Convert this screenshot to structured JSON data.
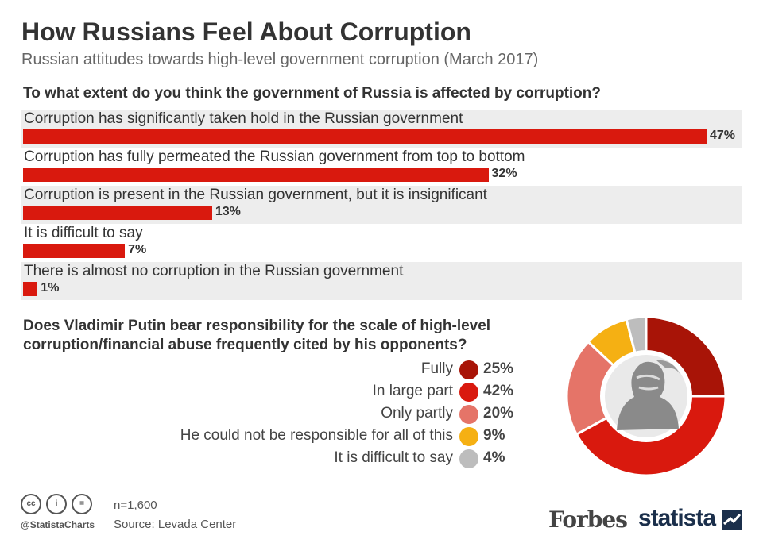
{
  "title": "How Russians Feel About Corruption",
  "subtitle": "Russian attitudes towards high-level government corruption (March 2017)",
  "chart_data": [
    {
      "type": "bar",
      "orientation": "horizontal",
      "title": "To what extent do you think the government of Russia is affected by corruption?",
      "categories": [
        "Corruption has significantly taken hold in the Russian government",
        "Corruption has fully permeated the Russian government from top to bottom",
        "Corruption is present in the Russian government, but it is insignificant",
        "It is difficult to say",
        "There is almost no corruption in the Russian government"
      ],
      "values": [
        47,
        32,
        13,
        7,
        1
      ],
      "value_labels": [
        "47%",
        "32%",
        "13%",
        "7%",
        "1%"
      ],
      "xlim": [
        0,
        47
      ],
      "color": "#d9190e"
    },
    {
      "type": "pie",
      "donut": true,
      "title_lines": [
        "Does Vladimir Putin bear responsibility for the scale of high-level",
        "corruption/financial abuse frequently cited by his opponents?"
      ],
      "categories": [
        "Fully",
        "In large part",
        "Only partly",
        "He could not be responsible for all of this",
        "It is difficult to say"
      ],
      "values": [
        25,
        42,
        20,
        9,
        4
      ],
      "value_labels": [
        "25%",
        "42%",
        "20%",
        "9%",
        "4%"
      ],
      "colors": [
        "#a81407",
        "#d9190e",
        "#e57468",
        "#f5b013",
        "#bdbdbd"
      ]
    }
  ],
  "footer": {
    "cc_icons": [
      "cc-icon",
      "by-icon",
      "nd-icon"
    ],
    "cc_glyphs": [
      "cc",
      "i",
      "="
    ],
    "handle": "@StatistaCharts",
    "n": "n=1,600",
    "source": "Source: Levada Center",
    "forbes_logo": "Forbes",
    "statista_logo": "statista"
  }
}
